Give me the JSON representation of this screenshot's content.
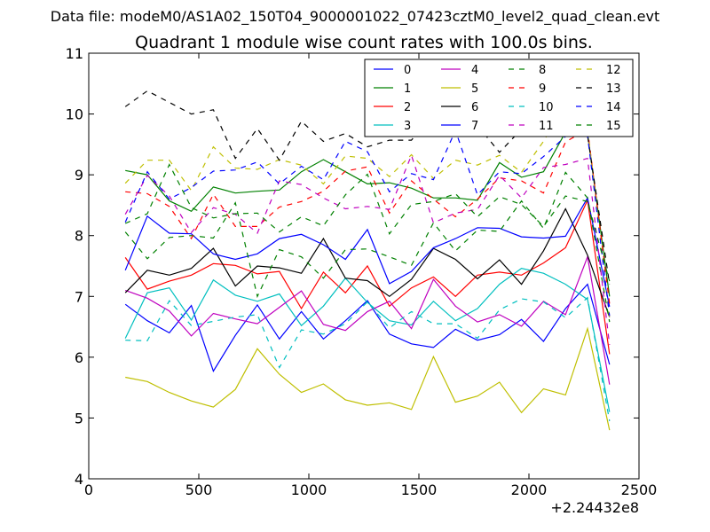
{
  "chart_data": {
    "type": "line",
    "suptitle": "Data file: modeM0/AS1A02_150T04_9000001022_07423cztM0_level2_quad_clean.evt",
    "title": "Quadrant 1 module wise count rates with 100.0s bins.",
    "xlabel": "",
    "ylabel": "",
    "x_offset_label": "+2.24432e8",
    "xlim": [
      0,
      2500
    ],
    "ylim": [
      4,
      11
    ],
    "xticks": [
      0,
      500,
      1000,
      1500,
      2000,
      2500
    ],
    "xtick_labels": [
      "0",
      "500",
      "1000",
      "1500",
      "2000",
      "2500"
    ],
    "yticks": [
      4,
      5,
      6,
      7,
      8,
      9,
      10,
      11
    ],
    "ytick_labels": [
      "4",
      "5",
      "6",
      "7",
      "8",
      "9",
      "10",
      "11"
    ],
    "grid": false,
    "legend_position": "top-right",
    "x": [
      166,
      266,
      366,
      466,
      566,
      666,
      766,
      866,
      966,
      1066,
      1166,
      1266,
      1366,
      1466,
      1566,
      1666,
      1766,
      1866,
      1966,
      2066,
      2166,
      2266,
      2366
    ],
    "series": [
      {
        "name": "0",
        "color": "#0000ff",
        "dash": "solid",
        "values": [
          6.87,
          6.6,
          6.4,
          6.85,
          5.77,
          6.36,
          6.86,
          6.3,
          6.75,
          6.3,
          6.6,
          6.93,
          6.38,
          6.22,
          6.16,
          6.46,
          6.28,
          6.37,
          6.62,
          6.26,
          6.8,
          7.2,
          5.88
        ]
      },
      {
        "name": "1",
        "color": "#008000",
        "dash": "solid",
        "values": [
          9.07,
          9.0,
          8.57,
          8.4,
          8.8,
          8.7,
          8.73,
          8.75,
          9.05,
          9.25,
          9.05,
          8.85,
          8.87,
          8.78,
          8.62,
          8.62,
          8.58,
          9.2,
          8.96,
          9.05,
          9.7,
          9.68,
          7.0
        ]
      },
      {
        "name": "2",
        "color": "#ff0000",
        "dash": "solid",
        "values": [
          7.64,
          7.12,
          7.25,
          7.35,
          7.54,
          7.51,
          7.37,
          7.41,
          6.8,
          7.4,
          7.06,
          7.5,
          6.84,
          7.14,
          7.32,
          7.0,
          7.35,
          7.4,
          7.35,
          7.55,
          7.8,
          8.58,
          6.05
        ]
      },
      {
        "name": "3",
        "color": "#00bfbf",
        "dash": "solid",
        "values": [
          6.31,
          7.06,
          7.14,
          6.61,
          7.27,
          7.02,
          6.92,
          7.04,
          6.52,
          6.84,
          7.3,
          6.9,
          6.6,
          6.53,
          6.92,
          6.6,
          6.8,
          7.2,
          7.46,
          7.38,
          7.2,
          6.95,
          5.1
        ]
      },
      {
        "name": "4",
        "color": "#bf00bf",
        "dash": "solid",
        "values": [
          7.1,
          6.97,
          6.76,
          6.35,
          6.72,
          6.63,
          6.55,
          6.82,
          7.09,
          6.54,
          6.44,
          6.75,
          6.92,
          6.47,
          7.28,
          6.84,
          6.58,
          6.7,
          6.51,
          6.92,
          6.7,
          7.65,
          5.55
        ]
      },
      {
        "name": "5",
        "color": "#bfbf00",
        "dash": "solid",
        "values": [
          5.67,
          5.6,
          5.42,
          5.28,
          5.18,
          5.47,
          6.14,
          5.72,
          5.42,
          5.56,
          5.3,
          5.21,
          5.25,
          5.14,
          6.01,
          5.26,
          5.36,
          5.59,
          5.09,
          5.48,
          5.38,
          6.47,
          4.8
        ]
      },
      {
        "name": "6",
        "color": "#000000",
        "dash": "solid",
        "values": [
          7.06,
          7.43,
          7.35,
          7.46,
          7.79,
          7.17,
          7.5,
          7.47,
          7.38,
          7.95,
          7.3,
          7.26,
          7.0,
          7.28,
          7.79,
          7.61,
          7.29,
          7.6,
          7.2,
          7.75,
          8.44,
          7.68,
          6.66
        ]
      },
      {
        "name": "7",
        "color": "#0000ff",
        "dash": "solid",
        "values": [
          7.43,
          8.32,
          8.04,
          8.03,
          7.7,
          7.61,
          7.7,
          7.95,
          8.02,
          7.85,
          7.61,
          8.1,
          7.21,
          7.41,
          7.8,
          7.95,
          8.13,
          8.12,
          7.98,
          7.96,
          7.99,
          8.62,
          6.83
        ]
      },
      {
        "name": "8",
        "color": "#008000",
        "dash": "dashed",
        "values": [
          8.06,
          7.62,
          7.97,
          8.0,
          7.96,
          8.54,
          7.0,
          7.77,
          7.65,
          7.3,
          7.77,
          7.78,
          7.65,
          7.51,
          8.21,
          7.75,
          8.09,
          8.07,
          8.57,
          8.12,
          9.04,
          8.62,
          6.58
        ]
      },
      {
        "name": "9",
        "color": "#ff0000",
        "dash": "dashed",
        "values": [
          8.72,
          8.69,
          8.48,
          7.95,
          8.68,
          8.15,
          8.15,
          8.47,
          8.56,
          8.73,
          9.06,
          9.13,
          8.37,
          8.9,
          8.6,
          8.31,
          8.6,
          8.95,
          8.9,
          8.7,
          9.54,
          9.75,
          6.88
        ]
      },
      {
        "name": "10",
        "color": "#00bfbf",
        "dash": "dashed",
        "values": [
          6.28,
          6.27,
          6.93,
          6.52,
          6.59,
          6.66,
          6.7,
          5.83,
          6.45,
          6.38,
          6.55,
          6.91,
          6.48,
          6.75,
          6.55,
          6.55,
          6.31,
          6.78,
          6.96,
          6.91,
          6.65,
          6.98,
          4.95
        ]
      },
      {
        "name": "11",
        "color": "#bf00bf",
        "dash": "dashed",
        "values": [
          8.35,
          8.99,
          8.65,
          8.05,
          8.46,
          8.35,
          8.04,
          8.9,
          8.84,
          8.62,
          8.44,
          8.48,
          8.43,
          9.32,
          8.21,
          8.37,
          8.43,
          8.99,
          8.62,
          9.12,
          9.17,
          9.27,
          6.2
        ]
      },
      {
        "name": "12",
        "color": "#bfbf00",
        "dash": "dashed",
        "values": [
          8.86,
          9.24,
          9.24,
          8.74,
          9.46,
          9.11,
          9.09,
          9.25,
          9.16,
          8.85,
          9.31,
          9.27,
          8.97,
          9.33,
          8.94,
          9.24,
          9.16,
          9.32,
          9.04,
          9.55,
          10.16,
          9.75,
          6.65
        ]
      },
      {
        "name": "13",
        "color": "#000000",
        "dash": "dashed",
        "values": [
          10.12,
          10.38,
          10.19,
          10.0,
          10.07,
          9.27,
          9.76,
          9.24,
          9.88,
          9.55,
          9.68,
          9.46,
          9.57,
          9.57,
          10.03,
          9.85,
          9.81,
          9.37,
          9.75,
          9.73,
          9.85,
          9.65,
          7.2
        ]
      },
      {
        "name": "14",
        "color": "#0000ff",
        "dash": "dashed",
        "values": [
          8.22,
          9.05,
          8.6,
          8.79,
          9.06,
          9.08,
          9.21,
          8.85,
          9.14,
          8.92,
          9.55,
          9.38,
          8.72,
          9.02,
          8.92,
          9.73,
          8.67,
          9.05,
          9.02,
          9.3,
          9.63,
          9.65,
          6.68
        ]
      },
      {
        "name": "15",
        "color": "#008000",
        "dash": "dashed",
        "values": [
          8.2,
          8.36,
          9.17,
          8.46,
          8.29,
          8.36,
          8.37,
          8.06,
          8.31,
          8.16,
          8.67,
          9.01,
          8.03,
          8.51,
          8.56,
          8.69,
          8.31,
          8.64,
          8.51,
          8.15,
          8.65,
          8.56,
          7.25
        ]
      }
    ]
  }
}
